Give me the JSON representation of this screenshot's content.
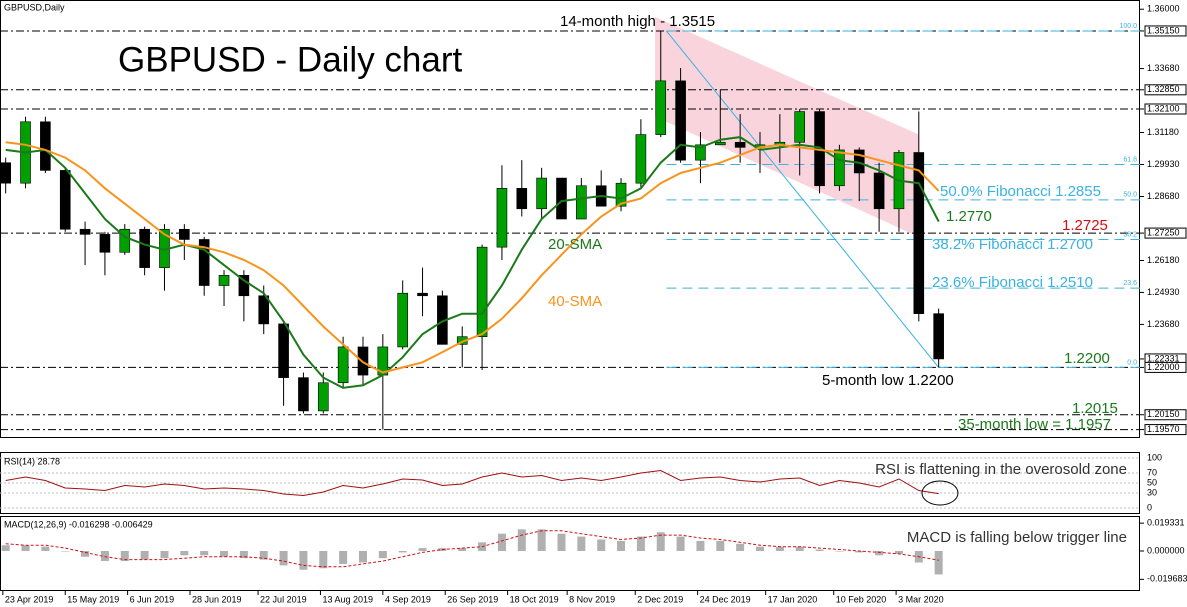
{
  "chart_data": {
    "type": "candlestick",
    "symbol": "GBPUSD,Daily",
    "title": "GBPUSD - Daily chart",
    "x": [
      "2019-04-22",
      "2019-04-29",
      "2019-05-06",
      "2019-05-13",
      "2019-05-20",
      "2019-05-27",
      "2019-06-03",
      "2019-06-10",
      "2019-06-17",
      "2019-06-24",
      "2019-07-01",
      "2019-07-08",
      "2019-07-15",
      "2019-07-22",
      "2019-07-29",
      "2019-08-05",
      "2019-08-12",
      "2019-08-19",
      "2019-08-26",
      "2019-09-02",
      "2019-09-09",
      "2019-09-16",
      "2019-09-23",
      "2019-09-30",
      "2019-10-07",
      "2019-10-14",
      "2019-10-21",
      "2019-10-28",
      "2019-11-04",
      "2019-11-11",
      "2019-11-18",
      "2019-11-25",
      "2019-12-02",
      "2019-12-09",
      "2019-12-16",
      "2019-12-23",
      "2019-12-30",
      "2020-01-06",
      "2020-01-13",
      "2020-01-20",
      "2020-01-27",
      "2020-02-03",
      "2020-02-10",
      "2020-02-17",
      "2020-02-24",
      "2020-03-02",
      "2020-03-09",
      "2020-03-16"
    ],
    "open": [
      1.3,
      1.292,
      1.316,
      1.297,
      1.274,
      1.272,
      1.265,
      1.274,
      1.259,
      1.274,
      1.27,
      1.252,
      1.256,
      1.248,
      1.237,
      1.216,
      1.203,
      1.214,
      1.228,
      1.217,
      1.228,
      1.249,
      1.248,
      1.229,
      1.232,
      1.267,
      1.29,
      1.282,
      1.294,
      1.278,
      1.291,
      1.283,
      1.292,
      1.311,
      1.332,
      1.301,
      1.307,
      1.308,
      1.306,
      1.307,
      1.308,
      1.32,
      1.291,
      1.305,
      1.296,
      1.282,
      1.304,
      1.241
    ],
    "high": [
      1.302,
      1.318,
      1.318,
      1.298,
      1.277,
      1.273,
      1.276,
      1.275,
      1.276,
      1.276,
      1.271,
      1.258,
      1.258,
      1.252,
      1.238,
      1.218,
      1.218,
      1.232,
      1.232,
      1.233,
      1.254,
      1.259,
      1.25,
      1.236,
      1.268,
      1.299,
      1.301,
      1.298,
      1.294,
      1.294,
      1.297,
      1.294,
      1.317,
      1.3515,
      1.337,
      1.312,
      1.3285,
      1.319,
      1.312,
      1.319,
      1.321,
      1.321,
      1.307,
      1.306,
      1.3,
      1.305,
      1.32,
      1.243
    ],
    "low": [
      1.288,
      1.29,
      1.296,
      1.273,
      1.26,
      1.256,
      1.264,
      1.256,
      1.25,
      1.262,
      1.248,
      1.244,
      1.238,
      1.233,
      1.205,
      1.202,
      1.202,
      1.212,
      1.213,
      1.1957,
      1.227,
      1.24,
      1.229,
      1.22,
      1.219,
      1.262,
      1.279,
      1.278,
      1.278,
      1.278,
      1.283,
      1.281,
      1.29,
      1.31,
      1.3,
      1.292,
      1.307,
      1.3,
      1.296,
      1.3,
      1.295,
      1.288,
      1.289,
      1.285,
      1.273,
      1.273,
      1.238,
      1.22
    ],
    "close": [
      1.292,
      1.316,
      1.297,
      1.274,
      1.272,
      1.265,
      1.274,
      1.259,
      1.274,
      1.27,
      1.252,
      1.256,
      1.248,
      1.237,
      1.216,
      1.203,
      1.214,
      1.228,
      1.217,
      1.228,
      1.249,
      1.248,
      1.229,
      1.232,
      1.267,
      1.29,
      1.282,
      1.294,
      1.278,
      1.291,
      1.283,
      1.292,
      1.311,
      1.332,
      1.301,
      1.307,
      1.308,
      1.306,
      1.307,
      1.308,
      1.32,
      1.291,
      1.305,
      1.296,
      1.282,
      1.304,
      1.241,
      1.22331
    ],
    "up_color": "#00a000",
    "down_color": "#000000",
    "series": [
      {
        "name": "20-SMA",
        "color": "#1a7a1a",
        "values": [
          1.305,
          1.304,
          1.305,
          1.298,
          1.288,
          1.278,
          1.271,
          1.268,
          1.266,
          1.268,
          1.266,
          1.26,
          1.254,
          1.249,
          1.238,
          1.225,
          1.216,
          1.212,
          1.213,
          1.217,
          1.224,
          1.233,
          1.238,
          1.241,
          1.241,
          1.252,
          1.266,
          1.278,
          1.285,
          1.286,
          1.287,
          1.286,
          1.29,
          1.3,
          1.307,
          1.306,
          1.309,
          1.31,
          1.305,
          1.306,
          1.307,
          1.306,
          1.301,
          1.3,
          1.297,
          1.293,
          1.292,
          1.277
        ]
      },
      {
        "name": "40-SMA",
        "color": "#f7941d",
        "values": [
          1.308,
          1.307,
          1.305,
          1.302,
          1.297,
          1.29,
          1.284,
          1.278,
          1.272,
          1.268,
          1.267,
          1.265,
          1.262,
          1.258,
          1.252,
          1.244,
          1.236,
          1.229,
          1.222,
          1.218,
          1.22,
          1.222,
          1.226,
          1.23,
          1.233,
          1.239,
          1.247,
          1.256,
          1.264,
          1.272,
          1.279,
          1.284,
          1.286,
          1.292,
          1.296,
          1.298,
          1.3,
          1.303,
          1.306,
          1.307,
          1.306,
          1.305,
          1.304,
          1.303,
          1.301,
          1.299,
          1.297,
          1.289
        ]
      }
    ],
    "xlim": [
      "2019-04-22",
      "2020-05-28"
    ],
    "xticks": [
      {
        "value": "2019-04-23",
        "label": "23 Apr 2019"
      },
      {
        "value": "2019-05-15",
        "label": "15 May 2019"
      },
      {
        "value": "2019-06-06",
        "label": "6 Jun 2019"
      },
      {
        "value": "2019-06-28",
        "label": "28 Jun 2019"
      },
      {
        "value": "2019-07-22",
        "label": "22 Jul 2019"
      },
      {
        "value": "2019-08-13",
        "label": "13 Aug 2019"
      },
      {
        "value": "2019-09-04",
        "label": "4 Sep 2019"
      },
      {
        "value": "2019-09-26",
        "label": "26 Sep 2019"
      },
      {
        "value": "2019-10-18",
        "label": "18 Oct 2019"
      },
      {
        "value": "2019-11-08",
        "label": "8 Nov 2019"
      },
      {
        "value": "2019-12-02",
        "label": "2 Dec 2019"
      },
      {
        "value": "2019-12-24",
        "label": "24 Dec 2019"
      },
      {
        "value": "2020-01-17",
        "label": "17 Jan 2020"
      },
      {
        "value": "2020-02-10",
        "label": "10 Feb 2020"
      },
      {
        "value": "2020-03-03",
        "label": "3 Mar 2020"
      }
    ],
    "ylim": [
      1.1928,
      1.3636
    ],
    "yticks": [
      {
        "value": 1.36,
        "label": "1.36000"
      },
      {
        "value": 1.3515,
        "label": "1.35150"
      },
      {
        "value": 1.3368,
        "label": "1.33680"
      },
      {
        "value": 1.3285,
        "label": "1.32850"
      },
      {
        "value": 1.321,
        "label": "1.32100"
      },
      {
        "value": 1.3118,
        "label": "1.31180"
      },
      {
        "value": 1.2993,
        "label": "1.29930"
      },
      {
        "value": 1.2868,
        "label": "1.28680"
      },
      {
        "value": 1.2725,
        "label": "1.27250"
      },
      {
        "value": 1.2618,
        "label": "1.26180"
      },
      {
        "value": 1.2493,
        "label": "1.24930"
      },
      {
        "value": 1.2368,
        "label": "1.23680"
      },
      {
        "value": 1.22331,
        "label": "1.22331"
      },
      {
        "value": 1.22,
        "label": "1.22000"
      },
      {
        "value": 1.2015,
        "label": "1.20150"
      },
      {
        "value": 1.1957,
        "label": "1.19570"
      }
    ],
    "levels": [
      1.3515,
      1.3285,
      1.321,
      1.2725,
      1.22,
      1.2015,
      1.1957
    ],
    "fibonacci": {
      "start": "2019-12-13",
      "end": "2020-03-18",
      "color": "#3bb3e0",
      "levels": [
        {
          "ratio": "100.0",
          "price": 1.3515
        },
        {
          "ratio": "61.8",
          "price": 1.2993
        },
        {
          "ratio": "50.0",
          "price": 1.2855
        },
        {
          "ratio": "38.2",
          "price": 1.27
        },
        {
          "ratio": "23.6",
          "price": 1.251
        },
        {
          "ratio": "0.0",
          "price": 1.22
        }
      ]
    },
    "channel": {
      "start": "2019-12-09",
      "end": "2020-03-11",
      "color": "#f7c6d2",
      "upper": [
        1.357,
        1.311
      ],
      "lower": [
        1.318,
        1.271
      ]
    },
    "annotations": {
      "high": "14-month high - 1.3515",
      "low5": "5-month low 1.2200",
      "low35": "35-month low = 1.1957",
      "sma20": "20-SMA",
      "sma40": "40-SMA",
      "fib50": "50.0% Fibonacci 1.2855",
      "fib38": "38.2% Fibonacci 1.2700",
      "fib23": "23.6% Fibonacci 1.2510",
      "sma_last": "1.2770",
      "res": "1.2725",
      "sup": "1.2200",
      "sup2": "1.2015"
    },
    "rsi": {
      "header": "RSI(14) 28.78",
      "color": "#a01010",
      "values": [
        55,
        62,
        55,
        40,
        38,
        35,
        45,
        42,
        48,
        45,
        38,
        40,
        38,
        35,
        28,
        25,
        32,
        45,
        40,
        48,
        58,
        56,
        45,
        48,
        62,
        70,
        62,
        65,
        55,
        60,
        55,
        62,
        70,
        75,
        55,
        60,
        62,
        55,
        52,
        58,
        60,
        45,
        55,
        50,
        42,
        58,
        35,
        28.78
      ],
      "ylim": [
        0,
        100
      ],
      "yticks": [
        100,
        70,
        50,
        30,
        0
      ],
      "note": "RSI is flattening in the overosold zone"
    },
    "macd": {
      "header": "MACD(12,26,9) -0.016298 -0.006429",
      "hist_color": "#b0b0b0",
      "signal_color": "#d01010",
      "histogram": [
        0.004,
        0.004,
        0.003,
        0.0,
        -0.004,
        -0.007,
        -0.007,
        -0.006,
        -0.005,
        -0.003,
        -0.003,
        -0.004,
        -0.005,
        -0.006,
        -0.01,
        -0.013,
        -0.012,
        -0.009,
        -0.008,
        -0.005,
        -0.001,
        0.002,
        0.002,
        0.002,
        0.006,
        0.012,
        0.015,
        0.015,
        0.012,
        0.01,
        0.008,
        0.007,
        0.01,
        0.013,
        0.01,
        0.007,
        0.007,
        0.005,
        0.003,
        0.003,
        0.003,
        0.001,
        0.0,
        -0.001,
        -0.003,
        -0.002,
        -0.008,
        -0.016298
      ],
      "signal": [
        0.005,
        0.004,
        0.004,
        0.002,
        -0.001,
        -0.004,
        -0.006,
        -0.006,
        -0.006,
        -0.005,
        -0.004,
        -0.004,
        -0.004,
        -0.005,
        -0.007,
        -0.01,
        -0.011,
        -0.011,
        -0.009,
        -0.007,
        -0.004,
        -0.001,
        0.001,
        0.002,
        0.003,
        0.007,
        0.011,
        0.014,
        0.014,
        0.012,
        0.01,
        0.008,
        0.009,
        0.011,
        0.011,
        0.009,
        0.008,
        0.006,
        0.004,
        0.003,
        0.003,
        0.002,
        0.001,
        0.0,
        -0.001,
        -0.002,
        -0.004,
        -0.006429
      ],
      "ylim": [
        -0.0278,
        0.0243
      ],
      "yticks": [
        {
          "value": 0.019331,
          "label": "0.019331"
        },
        {
          "value": 0,
          "label": "0.000000"
        },
        {
          "value": -0.019683,
          "label": "-0.019683"
        }
      ],
      "note": "MACD is falling below trigger line"
    }
  }
}
